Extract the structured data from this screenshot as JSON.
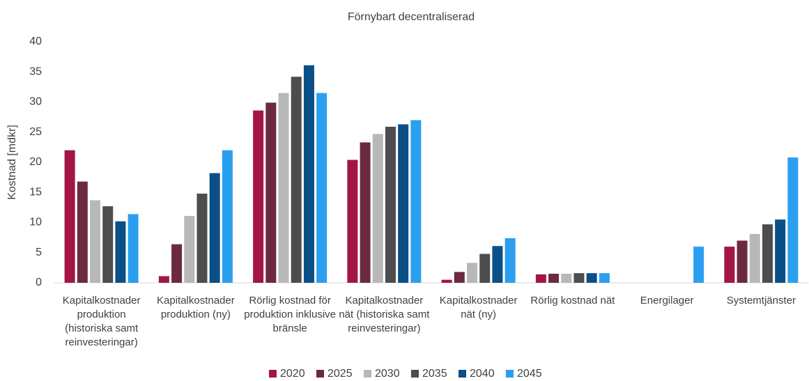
{
  "chart_data": {
    "type": "bar",
    "title": "Förnybart decentraliserad",
    "y_label": "Kostnad [mdkr]",
    "categories": [
      "Kapitalkostnader produktion (historiska samt reinvesteringar)",
      "Kapitalkostnader produktion (ny)",
      "Rörlig kostnad för produktion inklusive bränsle",
      "Kapitalkostnader nät (historiska samt reinvesteringar)",
      "Kapitalkostnader nät (ny)",
      "Rörlig kostnad nät",
      "Energilager",
      "Systemtjänster"
    ],
    "series": [
      {
        "name": "2020",
        "color": "#a31545",
        "values": [
          22.0,
          1.1,
          28.6,
          20.4,
          0.5,
          1.4,
          0,
          6.0
        ]
      },
      {
        "name": "2025",
        "color": "#6b2a3f",
        "values": [
          16.8,
          6.4,
          29.9,
          23.3,
          1.8,
          1.5,
          0,
          7.0
        ]
      },
      {
        "name": "2030",
        "color": "#b8b8b8",
        "values": [
          13.7,
          11.1,
          31.5,
          24.7,
          3.3,
          1.5,
          0,
          8.1
        ]
      },
      {
        "name": "2035",
        "color": "#4d4d4d",
        "values": [
          12.7,
          14.8,
          34.2,
          25.9,
          4.8,
          1.6,
          0,
          9.7
        ]
      },
      {
        "name": "2040",
        "color": "#0b4f87",
        "values": [
          10.2,
          18.2,
          36.1,
          26.3,
          6.1,
          1.6,
          0,
          10.5
        ]
      },
      {
        "name": "2045",
        "color": "#2b9fef",
        "values": [
          11.4,
          22.0,
          31.5,
          27.0,
          7.4,
          1.6,
          6.0,
          20.8
        ]
      }
    ],
    "ylim": [
      0,
      40
    ],
    "yticks": [
      0,
      5,
      10,
      15,
      20,
      25,
      30,
      35,
      40
    ],
    "grid": false,
    "legend": "bottom"
  }
}
